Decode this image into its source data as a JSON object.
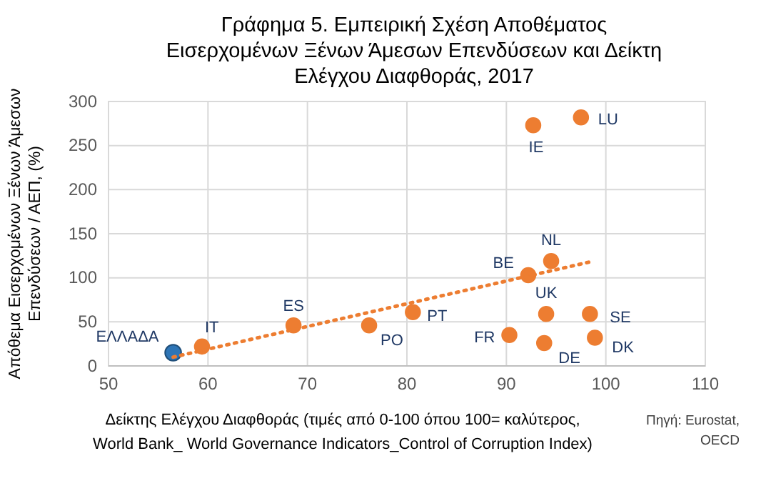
{
  "chart_data": {
    "type": "scatter",
    "title": "Γράφημα  5. Εμπειρική Σχέση Αποθέματος\nΕισερχομένων Ξένων Άμεσων Επενδύσεων και Δείκτη\nΕλέγχου Διαφθοράς, 2017",
    "xlabel": "Δείκτης Ελέγχου Διαφθοράς (τιμές από 0-100 όπου 100=  καλύτερος,\nWorld Bank_ World Governance Indicators_Control of Corruption Index)",
    "ylabel": "Απόθεμα Εισερχομένων Ξένων Άμεσων\nΕπενδύσεων / ΑΕΠ, (%)",
    "series": [
      {
        "type": "scatter",
        "x": [
          56.5,
          59.4,
          68.6,
          76.2,
          80.6,
          92.7,
          97.5,
          94.5,
          92.2,
          94.0,
          98.4,
          90.3,
          93.8,
          98.9
        ],
        "values": [
          15,
          22,
          46,
          46,
          61,
          273,
          282,
          119,
          103,
          59,
          59,
          35,
          26,
          32
        ],
        "colors": [
          "#2e75b6",
          "#ed7d31",
          "#ed7d31",
          "#ed7d31",
          "#ed7d31",
          "#ed7d31",
          "#ed7d31",
          "#ed7d31",
          "#ed7d31",
          "#ed7d31",
          "#ed7d31",
          "#ed7d31",
          "#ed7d31",
          "#ed7d31"
        ],
        "marker": "circle"
      },
      {
        "type": "line",
        "x": [
          56.5,
          98.4
        ],
        "values": [
          10,
          118
        ],
        "color": "#ed7d31",
        "line_style": "dotted"
      }
    ],
    "annotations": [
      {
        "text": "ΕΛΛΑΔΑ",
        "x": 56.5,
        "y": 15
      },
      {
        "text": "IT",
        "x": 59.4,
        "y": 22
      },
      {
        "text": "ES",
        "x": 68.6,
        "y": 46
      },
      {
        "text": "PO",
        "x": 76.2,
        "y": 46
      },
      {
        "text": "PT",
        "x": 80.6,
        "y": 61
      },
      {
        "text": "IE",
        "x": 92.7,
        "y": 273
      },
      {
        "text": "LU",
        "x": 97.5,
        "y": 282
      },
      {
        "text": "NL",
        "x": 94.5,
        "y": 119
      },
      {
        "text": "BE",
        "x": 92.2,
        "y": 103
      },
      {
        "text": "UK",
        "x": 94.0,
        "y": 59
      },
      {
        "text": "SE",
        "x": 98.4,
        "y": 59
      },
      {
        "text": "FR",
        "x": 90.3,
        "y": 35
      },
      {
        "text": "DE",
        "x": 93.8,
        "y": 26
      },
      {
        "text": "DK",
        "x": 98.9,
        "y": 32
      },
      "Πηγή: Eurostat,\nOECD"
    ],
    "xlim": [
      50,
      110
    ],
    "xticks": [
      50,
      60,
      70,
      80,
      90,
      100,
      110
    ],
    "ylim": [
      0,
      300
    ],
    "yticks": [
      0,
      50,
      100,
      150,
      200,
      250,
      300
    ],
    "grid": true
  }
}
